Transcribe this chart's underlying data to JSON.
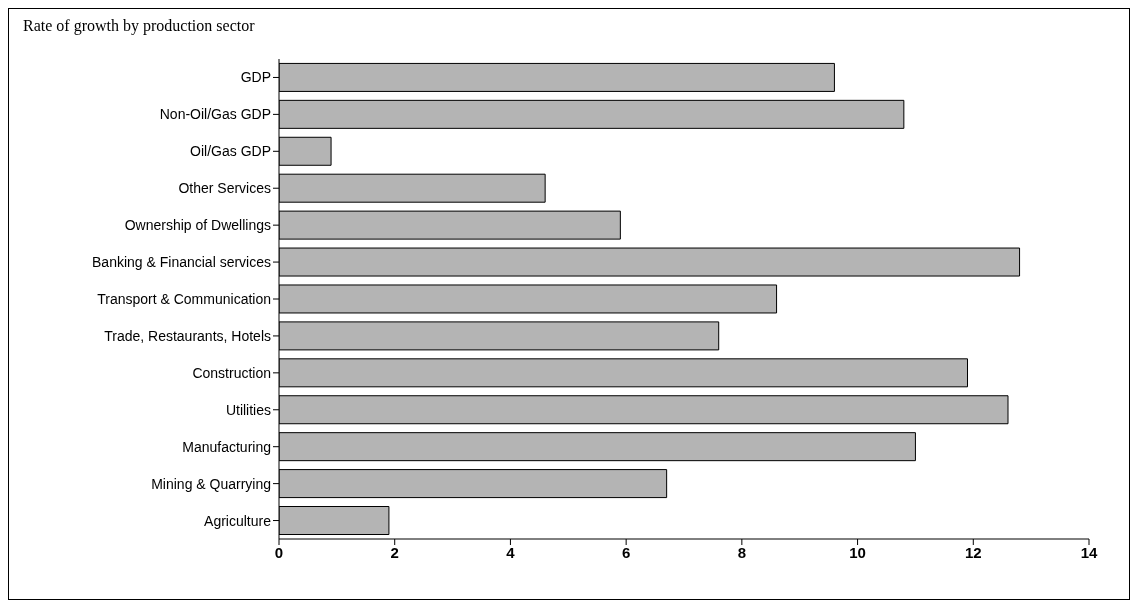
{
  "chart_data": {
    "type": "bar",
    "orientation": "horizontal",
    "title": "Rate of growth by production sector",
    "categories": [
      "GDP",
      "Non-Oil/Gas GDP",
      "Oil/Gas GDP",
      "Other Services",
      "Ownership of Dwellings",
      "Banking & Financial services",
      "Transport & Communication",
      "Trade, Restaurants, Hotels",
      "Construction",
      "Utilities",
      "Manufacturing",
      "Mining & Quarrying",
      "Agriculture"
    ],
    "values": [
      9.6,
      10.8,
      0.9,
      4.6,
      5.9,
      12.8,
      8.6,
      7.6,
      11.9,
      12.6,
      11.0,
      6.7,
      1.9
    ],
    "color": "#b4b4b4",
    "xlim": [
      0,
      14
    ],
    "xticks": [
      0,
      2,
      4,
      6,
      8,
      10,
      12,
      14
    ],
    "grid": false
  }
}
